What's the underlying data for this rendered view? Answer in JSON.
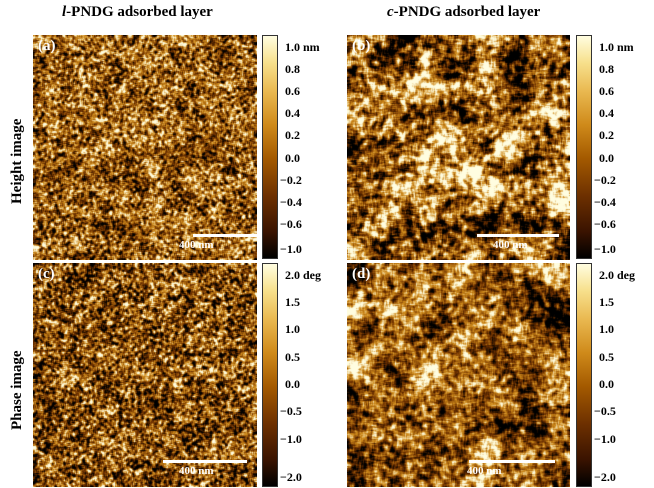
{
  "columns": [
    {
      "prefix": "l",
      "rest": "-PNDG adsorbed layer"
    },
    {
      "prefix": "c",
      "rest": "-PNDG adsorbed layer"
    }
  ],
  "rows": [
    "Height image",
    "Phase image"
  ],
  "panels": [
    {
      "label": "(a)",
      "scalebar": "400 nm"
    },
    {
      "label": "(b)",
      "scalebar": "400 nm"
    },
    {
      "label": "(c)",
      "scalebar": "400 nm"
    },
    {
      "label": "(d)",
      "scalebar": "400 nm"
    }
  ],
  "colorbars": {
    "height": [
      "1.0 nm",
      "0.8",
      "0.6",
      "0.4",
      "0.2",
      "0.0",
      "−0.2",
      "−0.4",
      "−0.6",
      "−1.0"
    ],
    "phase": [
      "2.0 deg",
      "1.5",
      "1.0",
      "0.5",
      "0.0",
      "−0.5",
      "−1.0",
      "−2.0"
    ]
  },
  "colormap": [
    "#000000",
    "#6d3000",
    "#cf8a1a",
    "#fffde0"
  ]
}
